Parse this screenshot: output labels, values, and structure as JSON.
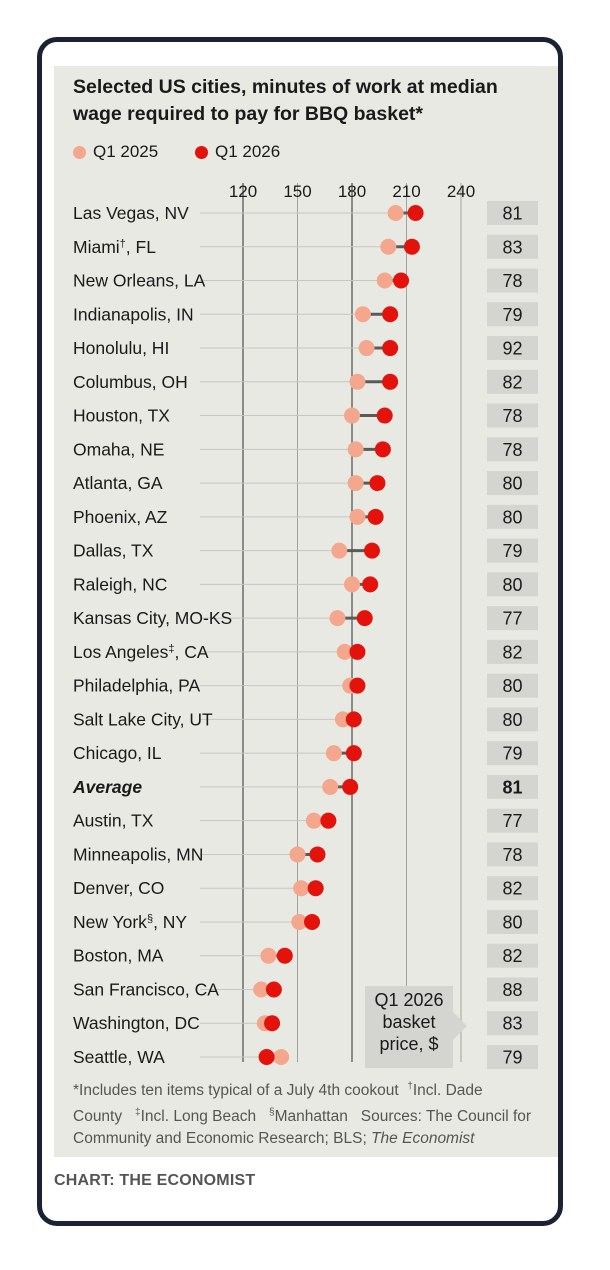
{
  "title": "Selected US cities, minutes of work at median wage required to pay for BBQ basket*",
  "legend": [
    {
      "label": "Q1 2025",
      "color": "#f4a78c"
    },
    {
      "label": "Q1 2026",
      "color": "#e3120b"
    }
  ],
  "callout_lines": [
    "Q1 2026",
    "basket",
    "price, $"
  ],
  "footnote": {
    "part1": "*Includes ten items typical of a July 4th cookout",
    "mark_dagger": "†",
    "part2": "Incl. Dade County",
    "mark_ddagger": "‡",
    "part3": "Incl. Long Beach",
    "mark_section": "§",
    "part4": "Manhattan",
    "part5": "Sources: The Council for Community and Economic Research; BLS;",
    "part6": "The Economist"
  },
  "credit": "CHART: THE ECONOMIST",
  "chart_data": {
    "type": "dot",
    "title": "Selected US cities, minutes of work at median wage required to pay for BBQ basket*",
    "x_ticks": [
      "120",
      "150",
      "180",
      "210",
      "240"
    ],
    "xlim": [
      120,
      240
    ],
    "grid": true,
    "series_names": [
      "Q1 2025",
      "Q1 2026"
    ],
    "rows": [
      {
        "city": "Las Vegas, NV",
        "sup": "",
        "bold": false,
        "q1_2025": 204,
        "q1_2026": 215,
        "price": "81"
      },
      {
        "city": "Miami",
        "sup": "†",
        "suffix": ", FL",
        "bold": false,
        "q1_2025": 200,
        "q1_2026": 213,
        "price": "83"
      },
      {
        "city": "New Orleans, LA",
        "sup": "",
        "bold": false,
        "q1_2025": 198,
        "q1_2026": 207,
        "price": "78"
      },
      {
        "city": "Indianapolis, IN",
        "sup": "",
        "bold": false,
        "q1_2025": 186,
        "q1_2026": 201,
        "price": "79"
      },
      {
        "city": "Honolulu, HI",
        "sup": "",
        "bold": false,
        "q1_2025": 188,
        "q1_2026": 201,
        "price": "92"
      },
      {
        "city": "Columbus, OH",
        "sup": "",
        "bold": false,
        "q1_2025": 183,
        "q1_2026": 201,
        "price": "82"
      },
      {
        "city": "Houston, TX",
        "sup": "",
        "bold": false,
        "q1_2025": 180,
        "q1_2026": 198,
        "price": "78"
      },
      {
        "city": "Omaha, NE",
        "sup": "",
        "bold": false,
        "q1_2025": 182,
        "q1_2026": 197,
        "price": "78"
      },
      {
        "city": "Atlanta, GA",
        "sup": "",
        "bold": false,
        "q1_2025": 182,
        "q1_2026": 194,
        "price": "80"
      },
      {
        "city": "Phoenix, AZ",
        "sup": "",
        "bold": false,
        "q1_2025": 183,
        "q1_2026": 193,
        "price": "80"
      },
      {
        "city": "Dallas, TX",
        "sup": "",
        "bold": false,
        "q1_2025": 173,
        "q1_2026": 191,
        "price": "79"
      },
      {
        "city": "Raleigh, NC",
        "sup": "",
        "bold": false,
        "q1_2025": 180,
        "q1_2026": 190,
        "price": "80"
      },
      {
        "city": "Kansas City, MO-KS",
        "sup": "",
        "bold": false,
        "q1_2025": 172,
        "q1_2026": 187,
        "price": "77"
      },
      {
        "city": "Los Angeles",
        "sup": "‡",
        "suffix": ", CA",
        "bold": false,
        "q1_2025": 176,
        "q1_2026": 183,
        "price": "82"
      },
      {
        "city": "Philadelphia, PA",
        "sup": "",
        "bold": false,
        "q1_2025": 179,
        "q1_2026": 183,
        "price": "80"
      },
      {
        "city": "Salt Lake City, UT",
        "sup": "",
        "bold": false,
        "q1_2025": 175,
        "q1_2026": 181,
        "price": "80"
      },
      {
        "city": "Chicago, IL",
        "sup": "",
        "bold": false,
        "q1_2025": 170,
        "q1_2026": 181,
        "price": "79"
      },
      {
        "city": "Average",
        "sup": "",
        "bold": true,
        "q1_2025": 168,
        "q1_2026": 179,
        "price": "81"
      },
      {
        "city": "Austin, TX",
        "sup": "",
        "bold": false,
        "q1_2025": 159,
        "q1_2026": 167,
        "price": "77"
      },
      {
        "city": "Minneapolis, MN",
        "sup": "",
        "bold": false,
        "q1_2025": 150,
        "q1_2026": 161,
        "price": "78"
      },
      {
        "city": "Denver, CO",
        "sup": "",
        "bold": false,
        "q1_2025": 152,
        "q1_2026": 160,
        "price": "82"
      },
      {
        "city": "New York",
        "sup": "§",
        "suffix": ", NY",
        "bold": false,
        "q1_2025": 151,
        "q1_2026": 158,
        "price": "80"
      },
      {
        "city": "Boston, MA",
        "sup": "",
        "bold": false,
        "q1_2025": 134,
        "q1_2026": 143,
        "price": "82"
      },
      {
        "city": "San Francisco, CA",
        "sup": "",
        "bold": false,
        "q1_2025": 130,
        "q1_2026": 137,
        "price": "88"
      },
      {
        "city": "Washington, DC",
        "sup": "",
        "bold": false,
        "q1_2025": 132,
        "q1_2026": 136,
        "price": "83"
      },
      {
        "city": "Seattle, WA",
        "sup": "",
        "bold": false,
        "q1_2025": 141,
        "q1_2026": 133,
        "price": "79"
      }
    ]
  }
}
